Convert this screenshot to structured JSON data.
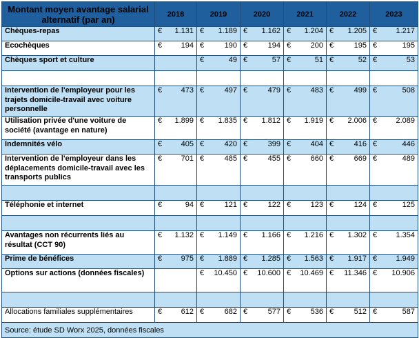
{
  "table": {
    "header_label": "Montant moyen avantage salarial alternatif (par an)",
    "years": [
      "2018",
      "2019",
      "2020",
      "2021",
      "2022",
      "2023"
    ],
    "currency": "€",
    "rows": [
      {
        "label": "Chèques-repas",
        "values": [
          "1.131",
          "1.189",
          "1.162",
          "1.204",
          "1.205",
          "1.217"
        ]
      },
      {
        "label": "Ecochèques",
        "values": [
          "194",
          "190",
          "194",
          "200",
          "195",
          "195"
        ]
      },
      {
        "label": "Chèques sport et culture",
        "values": [
          "",
          "49",
          "57",
          "51",
          "52",
          "53"
        ]
      },
      {
        "label": "",
        "values": [
          "",
          "",
          "",
          "",
          "",
          ""
        ]
      },
      {
        "label": "Intervention de l'employeur pour les trajets domicile-travail avec voiture personnelle",
        "values": [
          "473",
          "497",
          "479",
          "483",
          "499",
          "508"
        ]
      },
      {
        "label": "Utilisation privée d'une voiture de société (avantage en nature)",
        "values": [
          "1.899",
          "1.835",
          "1.812",
          "1.919",
          "2.006",
          "2.089"
        ]
      },
      {
        "label": "Indemnités vélo",
        "values": [
          "405",
          "420",
          "399",
          "404",
          "416",
          "446"
        ]
      },
      {
        "label": "Intervention de l'employeur dans les déplacements domicile-travail avec les transports publics",
        "values": [
          "701",
          "485",
          "455",
          "660",
          "669",
          "489"
        ]
      },
      {
        "label": "",
        "values": [
          "",
          "",
          "",
          "",
          "",
          ""
        ]
      },
      {
        "label": "Téléphonie et internet",
        "values": [
          "94",
          "121",
          "122",
          "123",
          "124",
          "125"
        ]
      },
      {
        "label": "",
        "values": [
          "",
          "",
          "",
          "",
          "",
          ""
        ]
      },
      {
        "label": "Avantages non récurrents liés au résultat (CCT 90)",
        "values": [
          "1.132",
          "1.149",
          "1.166",
          "1.216",
          "1.302",
          "1.354"
        ]
      },
      {
        "label": "Prime de bénéfices",
        "values": [
          "975",
          "1.889",
          "1.285",
          "1.563",
          "1.917",
          "1.949"
        ]
      },
      {
        "label": "Options sur actions (données fiscales)",
        "values": [
          "",
          "10.450",
          "10.600",
          "10.469",
          "11.346",
          "10.906"
        ]
      },
      {
        "label": "",
        "values": [
          "",
          "",
          "",
          "",
          "",
          ""
        ]
      },
      {
        "label": "Allocations familiales supplémentaires",
        "values": [
          "612",
          "682",
          "577",
          "536",
          "512",
          "587"
        ]
      }
    ],
    "source": "Source: étude SD Worx 2025, données fiscales"
  }
}
